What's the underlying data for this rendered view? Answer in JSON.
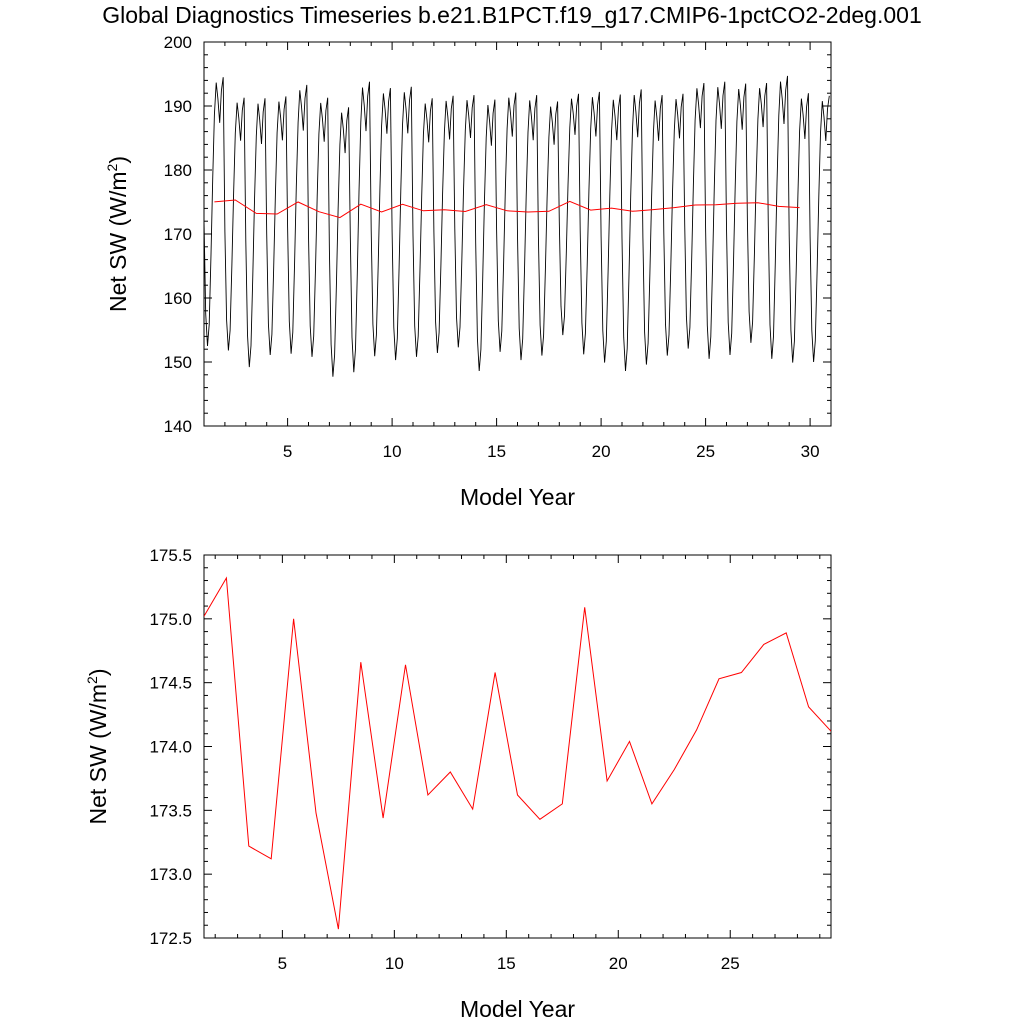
{
  "title": "Global Diagnostics Timeseries b.e21.B1PCT.f19_g17.CMIP6-1pctCO2-2deg.001",
  "colors": {
    "monthly": "#000000",
    "annual": "#ff0000"
  },
  "chart_data": [
    {
      "type": "line",
      "title": "",
      "xlabel": "Model Year",
      "ylabel": "Net SW (W/m",
      "ylabel_sup": "2",
      "ylabel_suffix": ")",
      "xlim": [
        1,
        31
      ],
      "ylim": [
        140,
        200
      ],
      "xticks": [
        "5",
        "10",
        "15",
        "20",
        "25",
        "30"
      ],
      "yticks": [
        "140",
        "150",
        "160",
        "170",
        "180",
        "190",
        "200"
      ],
      "grid": false,
      "legend": "none",
      "series": [
        {
          "style": "monthly",
          "monthly_min": [
            152.5,
            151.8,
            149.2,
            151.1,
            151.3,
            150.8,
            147.7,
            148.4,
            150.9,
            150.3,
            150.8,
            151.4,
            152.3,
            148.6,
            151.6,
            150.3,
            151.0,
            154.2,
            151.2,
            149.9,
            148.6,
            149.6,
            151.0,
            152.1,
            150.5,
            151.1,
            153.0,
            150.5,
            149.9,
            150.0
          ],
          "monthly_max": [
            194.5,
            191.3,
            191.2,
            191.5,
            193.3,
            191.3,
            189.8,
            193.8,
            192.8,
            193.0,
            191.2,
            191.6,
            191.7,
            191.0,
            192.1,
            191.7,
            190.7,
            191.9,
            192.2,
            191.8,
            192.6,
            191.7,
            191.9,
            193.6,
            193.8,
            193.5,
            193.6,
            194.7,
            192.0,
            191.6
          ]
        },
        {
          "style": "annual",
          "x": [
            1.5,
            2.5,
            3.5,
            4.5,
            5.5,
            6.5,
            7.5,
            8.5,
            9.5,
            10.5,
            11.5,
            12.5,
            13.5,
            14.5,
            15.5,
            16.5,
            17.5,
            18.5,
            19.5,
            20.5,
            21.5,
            22.5,
            23.5,
            24.5,
            25.5,
            26.5,
            27.5,
            28.5,
            29.5
          ],
          "y": [
            175.02,
            175.32,
            173.22,
            173.12,
            175.0,
            173.48,
            172.57,
            174.66,
            173.44,
            174.64,
            173.62,
            173.8,
            173.51,
            174.58,
            173.62,
            173.43,
            173.55,
            175.09,
            173.73,
            174.04,
            173.55,
            173.82,
            174.13,
            174.53,
            174.58,
            174.8,
            174.89,
            174.31,
            174.12
          ]
        }
      ]
    },
    {
      "type": "line",
      "title": "",
      "xlabel": "Model Year",
      "ylabel": "Net SW (W/m",
      "ylabel_sup": "2",
      "ylabel_suffix": ")",
      "xlim": [
        1.5,
        29.5
      ],
      "ylim": [
        172.5,
        175.5
      ],
      "xticks": [
        "5",
        "10",
        "15",
        "20",
        "25"
      ],
      "yticks": [
        "172.5",
        "173.0",
        "173.5",
        "174.0",
        "174.5",
        "175.0",
        "175.5"
      ],
      "grid": false,
      "legend": "none",
      "series": [
        {
          "style": "annual",
          "x": [
            1.5,
            2.5,
            3.5,
            4.5,
            5.5,
            6.5,
            7.5,
            8.5,
            9.5,
            10.5,
            11.5,
            12.5,
            13.5,
            14.5,
            15.5,
            16.5,
            17.5,
            18.5,
            19.5,
            20.5,
            21.5,
            22.5,
            23.5,
            24.5,
            25.5,
            26.5,
            27.5,
            28.5,
            29.5
          ],
          "y": [
            175.02,
            175.32,
            173.22,
            173.12,
            175.0,
            173.48,
            172.57,
            174.66,
            173.44,
            174.64,
            173.62,
            173.8,
            173.51,
            174.58,
            173.62,
            173.43,
            173.55,
            175.09,
            173.73,
            174.04,
            173.55,
            173.82,
            174.13,
            174.53,
            174.58,
            174.8,
            174.89,
            174.31,
            174.12
          ]
        }
      ]
    }
  ]
}
